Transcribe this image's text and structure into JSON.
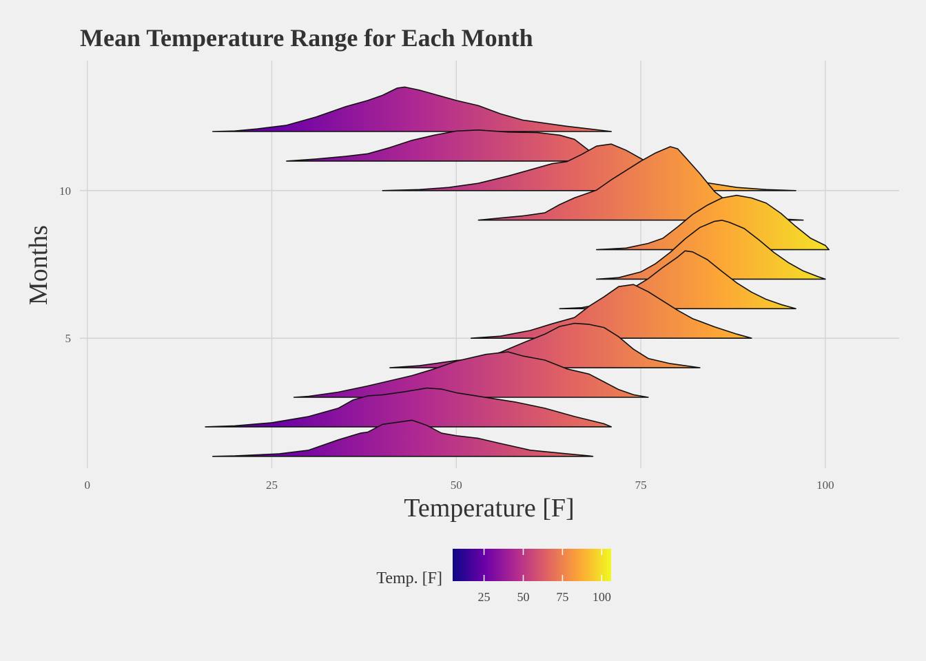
{
  "chart_data": {
    "type": "ridgeline",
    "title": "Mean Temperature Range for Each Month",
    "xlabel": "Temperature [F]",
    "ylabel": "Months",
    "xlim": [
      -1,
      110
    ],
    "ylim": [
      0.6,
      14.4
    ],
    "x_ticks": [
      0,
      25,
      50,
      75,
      100
    ],
    "y_ticks": [
      5,
      10
    ],
    "grid": true,
    "ridge_scale": 1.75,
    "legend": {
      "title": "Temp. [F]",
      "position": "bottom",
      "range": [
        5,
        106
      ],
      "ticks": [
        25,
        50,
        75,
        100
      ]
    },
    "palette": [
      "#0d0887",
      "#6a00a8",
      "#b12a90",
      "#e16462",
      "#fca636",
      "#f0f921"
    ],
    "series": [
      {
        "month": 1,
        "points": [
          [
            17,
            0
          ],
          [
            20,
            0.01
          ],
          [
            26,
            0.05
          ],
          [
            30,
            0.12
          ],
          [
            34,
            0.32
          ],
          [
            37,
            0.45
          ],
          [
            38,
            0.47
          ],
          [
            40,
            0.62
          ],
          [
            42,
            0.66
          ],
          [
            44,
            0.7
          ],
          [
            46,
            0.6
          ],
          [
            48,
            0.45
          ],
          [
            50,
            0.4
          ],
          [
            53,
            0.35
          ],
          [
            56,
            0.25
          ],
          [
            60,
            0.12
          ],
          [
            65,
            0.05
          ],
          [
            68,
            0.01
          ],
          [
            68.5,
            0
          ]
        ]
      },
      {
        "month": 2,
        "points": [
          [
            16,
            0
          ],
          [
            20,
            0.02
          ],
          [
            25,
            0.08
          ],
          [
            30,
            0.2
          ],
          [
            34,
            0.36
          ],
          [
            36,
            0.52
          ],
          [
            38,
            0.6
          ],
          [
            40,
            0.62
          ],
          [
            43,
            0.68
          ],
          [
            46,
            0.75
          ],
          [
            48,
            0.73
          ],
          [
            50,
            0.66
          ],
          [
            54,
            0.57
          ],
          [
            58,
            0.48
          ],
          [
            62,
            0.36
          ],
          [
            66,
            0.2
          ],
          [
            70,
            0.06
          ],
          [
            71,
            0
          ]
        ]
      },
      {
        "month": 3,
        "points": [
          [
            28,
            0
          ],
          [
            30,
            0.02
          ],
          [
            34,
            0.1
          ],
          [
            38,
            0.22
          ],
          [
            41,
            0.32
          ],
          [
            44,
            0.42
          ],
          [
            47,
            0.55
          ],
          [
            50,
            0.7
          ],
          [
            54,
            0.83
          ],
          [
            57,
            0.88
          ],
          [
            59,
            0.8
          ],
          [
            62,
            0.72
          ],
          [
            65,
            0.55
          ],
          [
            68,
            0.45
          ],
          [
            70,
            0.3
          ],
          [
            72,
            0.15
          ],
          [
            74,
            0.05
          ],
          [
            76,
            0
          ]
        ]
      },
      {
        "month": 4,
        "points": [
          [
            41,
            0
          ],
          [
            45,
            0.04
          ],
          [
            48,
            0.1
          ],
          [
            50,
            0.14
          ],
          [
            53,
            0.18
          ],
          [
            56,
            0.3
          ],
          [
            59,
            0.48
          ],
          [
            62,
            0.65
          ],
          [
            64,
            0.8
          ],
          [
            66,
            0.86
          ],
          [
            68,
            0.84
          ],
          [
            70,
            0.78
          ],
          [
            72,
            0.6
          ],
          [
            74,
            0.36
          ],
          [
            76,
            0.18
          ],
          [
            79,
            0.08
          ],
          [
            82,
            0.02
          ],
          [
            83,
            0
          ]
        ]
      },
      {
        "month": 5,
        "points": [
          [
            52,
            0
          ],
          [
            56,
            0.04
          ],
          [
            60,
            0.15
          ],
          [
            63,
            0.28
          ],
          [
            66,
            0.4
          ],
          [
            68,
            0.62
          ],
          [
            70,
            0.8
          ],
          [
            72,
            1.0
          ],
          [
            74,
            1.04
          ],
          [
            76,
            0.9
          ],
          [
            78,
            0.72
          ],
          [
            80,
            0.54
          ],
          [
            82,
            0.38
          ],
          [
            85,
            0.22
          ],
          [
            88,
            0.08
          ],
          [
            90,
            0
          ]
        ]
      },
      {
        "month": 6,
        "points": [
          [
            64,
            0
          ],
          [
            67,
            0.02
          ],
          [
            70,
            0.1
          ],
          [
            73,
            0.32
          ],
          [
            76,
            0.58
          ],
          [
            78,
            0.8
          ],
          [
            80,
            1.0
          ],
          [
            81,
            1.12
          ],
          [
            82,
            1.1
          ],
          [
            84,
            0.95
          ],
          [
            86,
            0.72
          ],
          [
            88,
            0.5
          ],
          [
            90,
            0.32
          ],
          [
            92,
            0.18
          ],
          [
            94,
            0.08
          ],
          [
            96,
            0
          ]
        ]
      },
      {
        "month": 7,
        "points": [
          [
            69,
            0
          ],
          [
            72,
            0.03
          ],
          [
            75,
            0.14
          ],
          [
            77,
            0.3
          ],
          [
            79,
            0.52
          ],
          [
            81,
            0.78
          ],
          [
            83,
            1.0
          ],
          [
            85,
            1.12
          ],
          [
            86,
            1.14
          ],
          [
            87,
            1.1
          ],
          [
            89,
            0.98
          ],
          [
            91,
            0.76
          ],
          [
            93,
            0.52
          ],
          [
            95,
            0.32
          ],
          [
            97,
            0.16
          ],
          [
            99,
            0.05
          ],
          [
            100,
            0
          ]
        ]
      },
      {
        "month": 8,
        "points": [
          [
            69,
            0
          ],
          [
            73,
            0.03
          ],
          [
            76,
            0.12
          ],
          [
            78,
            0.22
          ],
          [
            80,
            0.44
          ],
          [
            82,
            0.68
          ],
          [
            84,
            0.86
          ],
          [
            86,
            1.0
          ],
          [
            88,
            1.05
          ],
          [
            90,
            1.0
          ],
          [
            92,
            0.9
          ],
          [
            94,
            0.7
          ],
          [
            96,
            0.45
          ],
          [
            98,
            0.22
          ],
          [
            100,
            0.08
          ],
          [
            100.5,
            0
          ]
        ]
      },
      {
        "month": 9,
        "points": [
          [
            53,
            0
          ],
          [
            56,
            0.04
          ],
          [
            59,
            0.08
          ],
          [
            62,
            0.14
          ],
          [
            64,
            0.3
          ],
          [
            66,
            0.43
          ],
          [
            69,
            0.58
          ],
          [
            71,
            0.78
          ],
          [
            73,
            0.96
          ],
          [
            75,
            1.14
          ],
          [
            77,
            1.3
          ],
          [
            79,
            1.42
          ],
          [
            80,
            1.38
          ],
          [
            81,
            1.22
          ],
          [
            83,
            0.9
          ],
          [
            85,
            0.55
          ],
          [
            88,
            0.22
          ],
          [
            92,
            0.04
          ],
          [
            97,
            0
          ]
        ]
      },
      {
        "month": 10,
        "points": [
          [
            40,
            0
          ],
          [
            45,
            0.02
          ],
          [
            49,
            0.06
          ],
          [
            53,
            0.14
          ],
          [
            57,
            0.28
          ],
          [
            60,
            0.4
          ],
          [
            63,
            0.52
          ],
          [
            65,
            0.56
          ],
          [
            67,
            0.7
          ],
          [
            69,
            0.86
          ],
          [
            71,
            0.9
          ],
          [
            72,
            0.84
          ],
          [
            73,
            0.78
          ],
          [
            75,
            0.62
          ],
          [
            77,
            0.46
          ],
          [
            80,
            0.3
          ],
          [
            84,
            0.15
          ],
          [
            88,
            0.06
          ],
          [
            92,
            0.02
          ],
          [
            96,
            0
          ]
        ]
      },
      {
        "month": 11,
        "points": [
          [
            27,
            0
          ],
          [
            31,
            0.04
          ],
          [
            35,
            0.09
          ],
          [
            38,
            0.14
          ],
          [
            41,
            0.26
          ],
          [
            44,
            0.4
          ],
          [
            47,
            0.5
          ],
          [
            50,
            0.58
          ],
          [
            53,
            0.6
          ],
          [
            57,
            0.56
          ],
          [
            61,
            0.55
          ],
          [
            64,
            0.5
          ],
          [
            66,
            0.42
          ],
          [
            68,
            0.2
          ],
          [
            70,
            0.06
          ],
          [
            72,
            0
          ]
        ]
      },
      {
        "month": 12,
        "points": [
          [
            17,
            0
          ],
          [
            20,
            0.01
          ],
          [
            23,
            0.05
          ],
          [
            27,
            0.12
          ],
          [
            31,
            0.28
          ],
          [
            35,
            0.48
          ],
          [
            38,
            0.6
          ],
          [
            40,
            0.7
          ],
          [
            42,
            0.84
          ],
          [
            43,
            0.86
          ],
          [
            45,
            0.8
          ],
          [
            47,
            0.72
          ],
          [
            50,
            0.6
          ],
          [
            53,
            0.5
          ],
          [
            56,
            0.34
          ],
          [
            59,
            0.22
          ],
          [
            62,
            0.16
          ],
          [
            65,
            0.1
          ],
          [
            68,
            0.05
          ],
          [
            71,
            0
          ]
        ]
      }
    ]
  }
}
